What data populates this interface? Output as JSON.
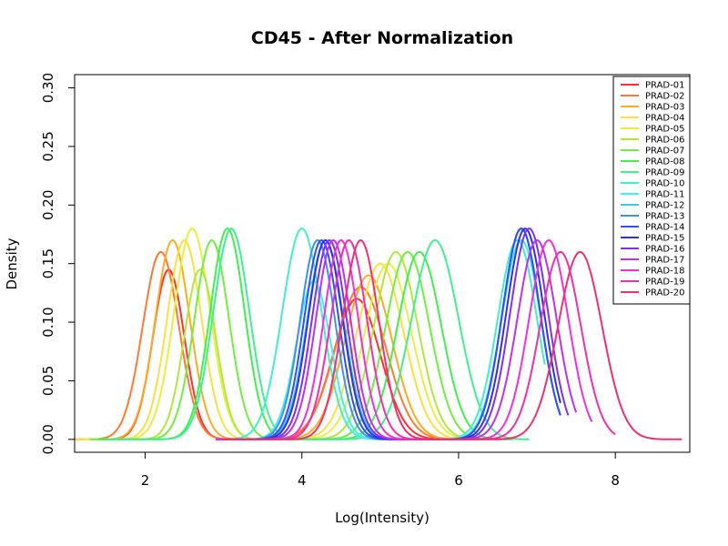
{
  "chart_data": {
    "type": "line",
    "title": "CD45 - After Normalization",
    "xlabel": "Log(Intensity)",
    "ylabel": "Density",
    "xlim": [
      1.1,
      8.95
    ],
    "ylim": [
      -0.011,
      0.3113
    ],
    "xticks": [
      2,
      4,
      6,
      8
    ],
    "xtick_labels": [
      "2",
      "4",
      "6",
      "8"
    ],
    "yticks": [
      0.0,
      0.05,
      0.1,
      0.15,
      0.2,
      0.25,
      0.3
    ],
    "ytick_labels": [
      "0.00",
      "0.05",
      "0.10",
      "0.15",
      "0.20",
      "0.25",
      "0.30"
    ],
    "grid": false,
    "legend_position": "top-right",
    "series": [
      {
        "name": "PRAD-01",
        "color": "#FF3030",
        "range": [
          1.1,
          6.2
        ],
        "components": [
          [
            0.145,
            2.3,
            0.2
          ],
          [
            0.12,
            4.7,
            0.3
          ]
        ]
      },
      {
        "name": "PRAD-02",
        "color": "#FF7A30",
        "range": [
          1.1,
          6.2
        ],
        "components": [
          [
            0.16,
            2.2,
            0.23
          ],
          [
            0.13,
            4.75,
            0.32
          ]
        ]
      },
      {
        "name": "PRAD-03",
        "color": "#FFAA20",
        "range": [
          1.1,
          6.2
        ],
        "components": [
          [
            0.17,
            2.35,
            0.22
          ],
          [
            0.14,
            4.85,
            0.3
          ]
        ]
      },
      {
        "name": "PRAD-04",
        "color": "#FFE040",
        "range": [
          1.1,
          6.2
        ],
        "components": [
          [
            0.17,
            2.5,
            0.22
          ],
          [
            0.15,
            5.0,
            0.3
          ]
        ]
      },
      {
        "name": "PRAD-05",
        "color": "#E8F040",
        "range": [
          1.2,
          6.4
        ],
        "components": [
          [
            0.18,
            2.6,
            0.23
          ],
          [
            0.15,
            5.1,
            0.3
          ]
        ]
      },
      {
        "name": "PRAD-06",
        "color": "#B0E840",
        "range": [
          1.3,
          6.4
        ],
        "components": [
          [
            0.145,
            2.7,
            0.2
          ],
          [
            0.16,
            5.2,
            0.28
          ]
        ]
      },
      {
        "name": "PRAD-07",
        "color": "#70F040",
        "range": [
          1.3,
          6.6
        ],
        "components": [
          [
            0.17,
            2.85,
            0.22
          ],
          [
            0.16,
            5.35,
            0.28
          ]
        ]
      },
      {
        "name": "PRAD-08",
        "color": "#40F050",
        "range": [
          1.4,
          6.7
        ],
        "components": [
          [
            0.18,
            3.05,
            0.22
          ],
          [
            0.16,
            5.5,
            0.28
          ]
        ]
      },
      {
        "name": "PRAD-09",
        "color": "#40F090",
        "range": [
          1.5,
          6.9
        ],
        "components": [
          [
            0.18,
            3.1,
            0.23
          ],
          [
            0.17,
            5.7,
            0.3
          ]
        ]
      },
      {
        "name": "PRAD-10",
        "color": "#40F0C8",
        "range": [
          2.9,
          7.1
        ],
        "components": [
          [
            0.18,
            4.0,
            0.25
          ],
          [
            0.17,
            6.75,
            0.25
          ]
        ]
      },
      {
        "name": "PRAD-11",
        "color": "#40F0F0",
        "range": [
          2.9,
          7.1
        ],
        "components": [
          [
            0.135,
            4.15,
            0.22
          ],
          [
            0.17,
            6.8,
            0.25
          ]
        ]
      },
      {
        "name": "PRAD-12",
        "color": "#40C8F0",
        "range": [
          2.9,
          7.2
        ],
        "components": [
          [
            0.17,
            4.3,
            0.23
          ],
          [
            0.18,
            6.8,
            0.24
          ]
        ]
      },
      {
        "name": "PRAD-13",
        "color": "#4090F0",
        "range": [
          2.9,
          7.3
        ],
        "components": [
          [
            0.17,
            4.2,
            0.22
          ],
          [
            0.18,
            6.8,
            0.24
          ]
        ]
      },
      {
        "name": "PRAD-14",
        "color": "#3050F0",
        "range": [
          2.9,
          7.3
        ],
        "components": [
          [
            0.17,
            4.25,
            0.22
          ],
          [
            0.18,
            6.8,
            0.24
          ]
        ]
      },
      {
        "name": "PRAD-15",
        "color": "#3030E0",
        "range": [
          2.9,
          7.3
        ],
        "components": [
          [
            0.17,
            4.3,
            0.22
          ],
          [
            0.18,
            6.85,
            0.24
          ]
        ]
      },
      {
        "name": "PRAD-16",
        "color": "#8030F0",
        "range": [
          2.9,
          7.4
        ],
        "components": [
          [
            0.17,
            4.35,
            0.22
          ],
          [
            0.18,
            6.9,
            0.24
          ]
        ]
      },
      {
        "name": "PRAD-17",
        "color": "#C030F0",
        "range": [
          2.9,
          7.5
        ],
        "components": [
          [
            0.17,
            4.4,
            0.22
          ],
          [
            0.17,
            7.0,
            0.25
          ]
        ]
      },
      {
        "name": "PRAD-18",
        "color": "#F030E0",
        "range": [
          2.9,
          7.7
        ],
        "components": [
          [
            0.17,
            4.5,
            0.22
          ],
          [
            0.17,
            7.15,
            0.25
          ]
        ]
      },
      {
        "name": "PRAD-19",
        "color": "#F030A8",
        "range": [
          3.0,
          8.0
        ],
        "components": [
          [
            0.17,
            4.6,
            0.23
          ],
          [
            0.16,
            7.3,
            0.26
          ]
        ]
      },
      {
        "name": "PRAD-20",
        "color": "#F03070",
        "range": [
          3.0,
          8.85
        ],
        "components": [
          [
            0.17,
            4.75,
            0.23
          ],
          [
            0.16,
            7.55,
            0.28
          ]
        ]
      }
    ]
  }
}
